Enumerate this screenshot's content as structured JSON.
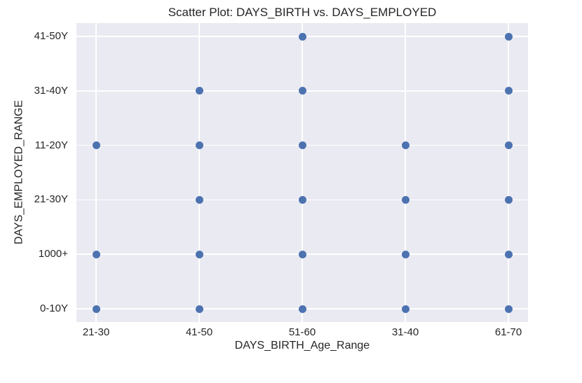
{
  "chart_data": {
    "type": "scatter",
    "title": "Scatter Plot: DAYS_BIRTH vs. DAYS_EMPLOYED",
    "xlabel": "DAYS_BIRTH_Age_Range",
    "ylabel": "DAYS_EMPLOYED_RANGE",
    "x_categories": [
      "21-30",
      "41-50",
      "51-60",
      "31-40",
      "61-70"
    ],
    "y_categories": [
      "41-50Y",
      "31-40Y",
      "11-20Y",
      "21-30Y",
      "1000+",
      "0-10Y"
    ],
    "y_category_order": "top-to-bottom",
    "grid": true,
    "legend": false,
    "points": [
      {
        "x": "51-60",
        "y": "41-50Y"
      },
      {
        "x": "61-70",
        "y": "41-50Y"
      },
      {
        "x": "41-50",
        "y": "31-40Y"
      },
      {
        "x": "51-60",
        "y": "31-40Y"
      },
      {
        "x": "61-70",
        "y": "31-40Y"
      },
      {
        "x": "21-30",
        "y": "11-20Y"
      },
      {
        "x": "41-50",
        "y": "11-20Y"
      },
      {
        "x": "51-60",
        "y": "11-20Y"
      },
      {
        "x": "31-40",
        "y": "11-20Y"
      },
      {
        "x": "61-70",
        "y": "11-20Y"
      },
      {
        "x": "41-50",
        "y": "21-30Y"
      },
      {
        "x": "51-60",
        "y": "21-30Y"
      },
      {
        "x": "31-40",
        "y": "21-30Y"
      },
      {
        "x": "61-70",
        "y": "21-30Y"
      },
      {
        "x": "21-30",
        "y": "1000+"
      },
      {
        "x": "41-50",
        "y": "1000+"
      },
      {
        "x": "51-60",
        "y": "1000+"
      },
      {
        "x": "31-40",
        "y": "1000+"
      },
      {
        "x": "61-70",
        "y": "1000+"
      },
      {
        "x": "21-30",
        "y": "0-10Y"
      },
      {
        "x": "41-50",
        "y": "0-10Y"
      },
      {
        "x": "51-60",
        "y": "0-10Y"
      },
      {
        "x": "31-40",
        "y": "0-10Y"
      },
      {
        "x": "61-70",
        "y": "0-10Y"
      }
    ],
    "colors": {
      "point": "#4c72b0",
      "plot_background": "#eaeaf2",
      "grid": "#ffffff",
      "text": "#262626",
      "figure_background": "#ffffff"
    }
  }
}
